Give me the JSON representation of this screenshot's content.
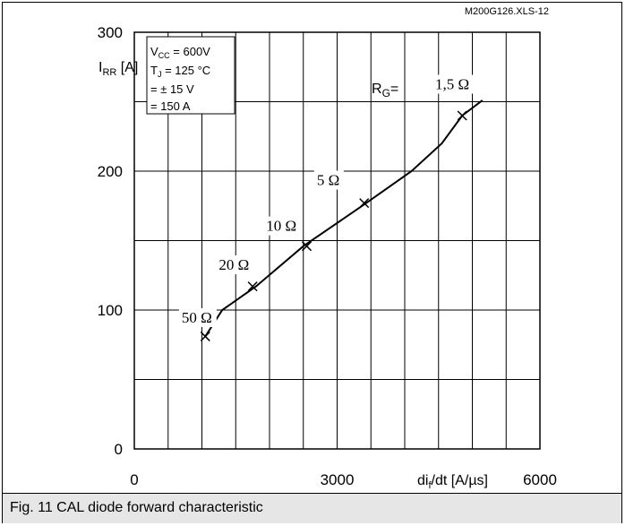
{
  "file_id": "M200G126.XLS-12",
  "caption": "Fig. 11 CAL diode forward characteristic",
  "chart_data": {
    "type": "line",
    "title": "",
    "xlabel": "di",
    "xlabel_sub": "f",
    "xlabel_rest": "/dt [A/µs]",
    "ylabel": "I",
    "ylabel_sub": "RR",
    "ylabel_rest": " [A]",
    "xlim": [
      0,
      6000
    ],
    "ylim": [
      0,
      300
    ],
    "x_tick_labels": [
      "0",
      "3000",
      "6000"
    ],
    "y_tick_labels": [
      "0",
      "100",
      "200",
      "300"
    ],
    "grid": true,
    "conditions": {
      "vcc_sym": "V",
      "vcc_sub": "CC",
      "vcc_val": " = 600V",
      "tj_sym": "T",
      "tj_sub": "J",
      "tj_val": " = 125 °C",
      "vge": "= ± 15 V",
      "if": "= 150 A"
    },
    "series": [
      {
        "x": [
          1050,
          1300,
          1800,
          2500,
          3400,
          4100,
          4550,
          4850,
          5150
        ],
        "y": [
          81,
          100,
          117,
          146,
          176,
          200,
          220,
          240,
          251
        ]
      }
    ],
    "markers": [
      {
        "x": 1050,
        "y": 81
      },
      {
        "x": 1750,
        "y": 117
      },
      {
        "x": 2550,
        "y": 146
      },
      {
        "x": 3400,
        "y": 177
      },
      {
        "x": 4850,
        "y": 240
      }
    ],
    "annotations": [
      {
        "text": "50 Ω",
        "x": 700,
        "y": 91
      },
      {
        "text": "20 Ω",
        "x": 1250,
        "y": 129
      },
      {
        "text": "10 Ω",
        "x": 1950,
        "y": 157
      },
      {
        "text": "5 Ω",
        "x": 2700,
        "y": 190
      },
      {
        "text": "1,5 Ω",
        "x": 4450,
        "y": 259
      }
    ],
    "rg_label": "R",
    "rg_sub": "G",
    "rg_eq": "="
  }
}
